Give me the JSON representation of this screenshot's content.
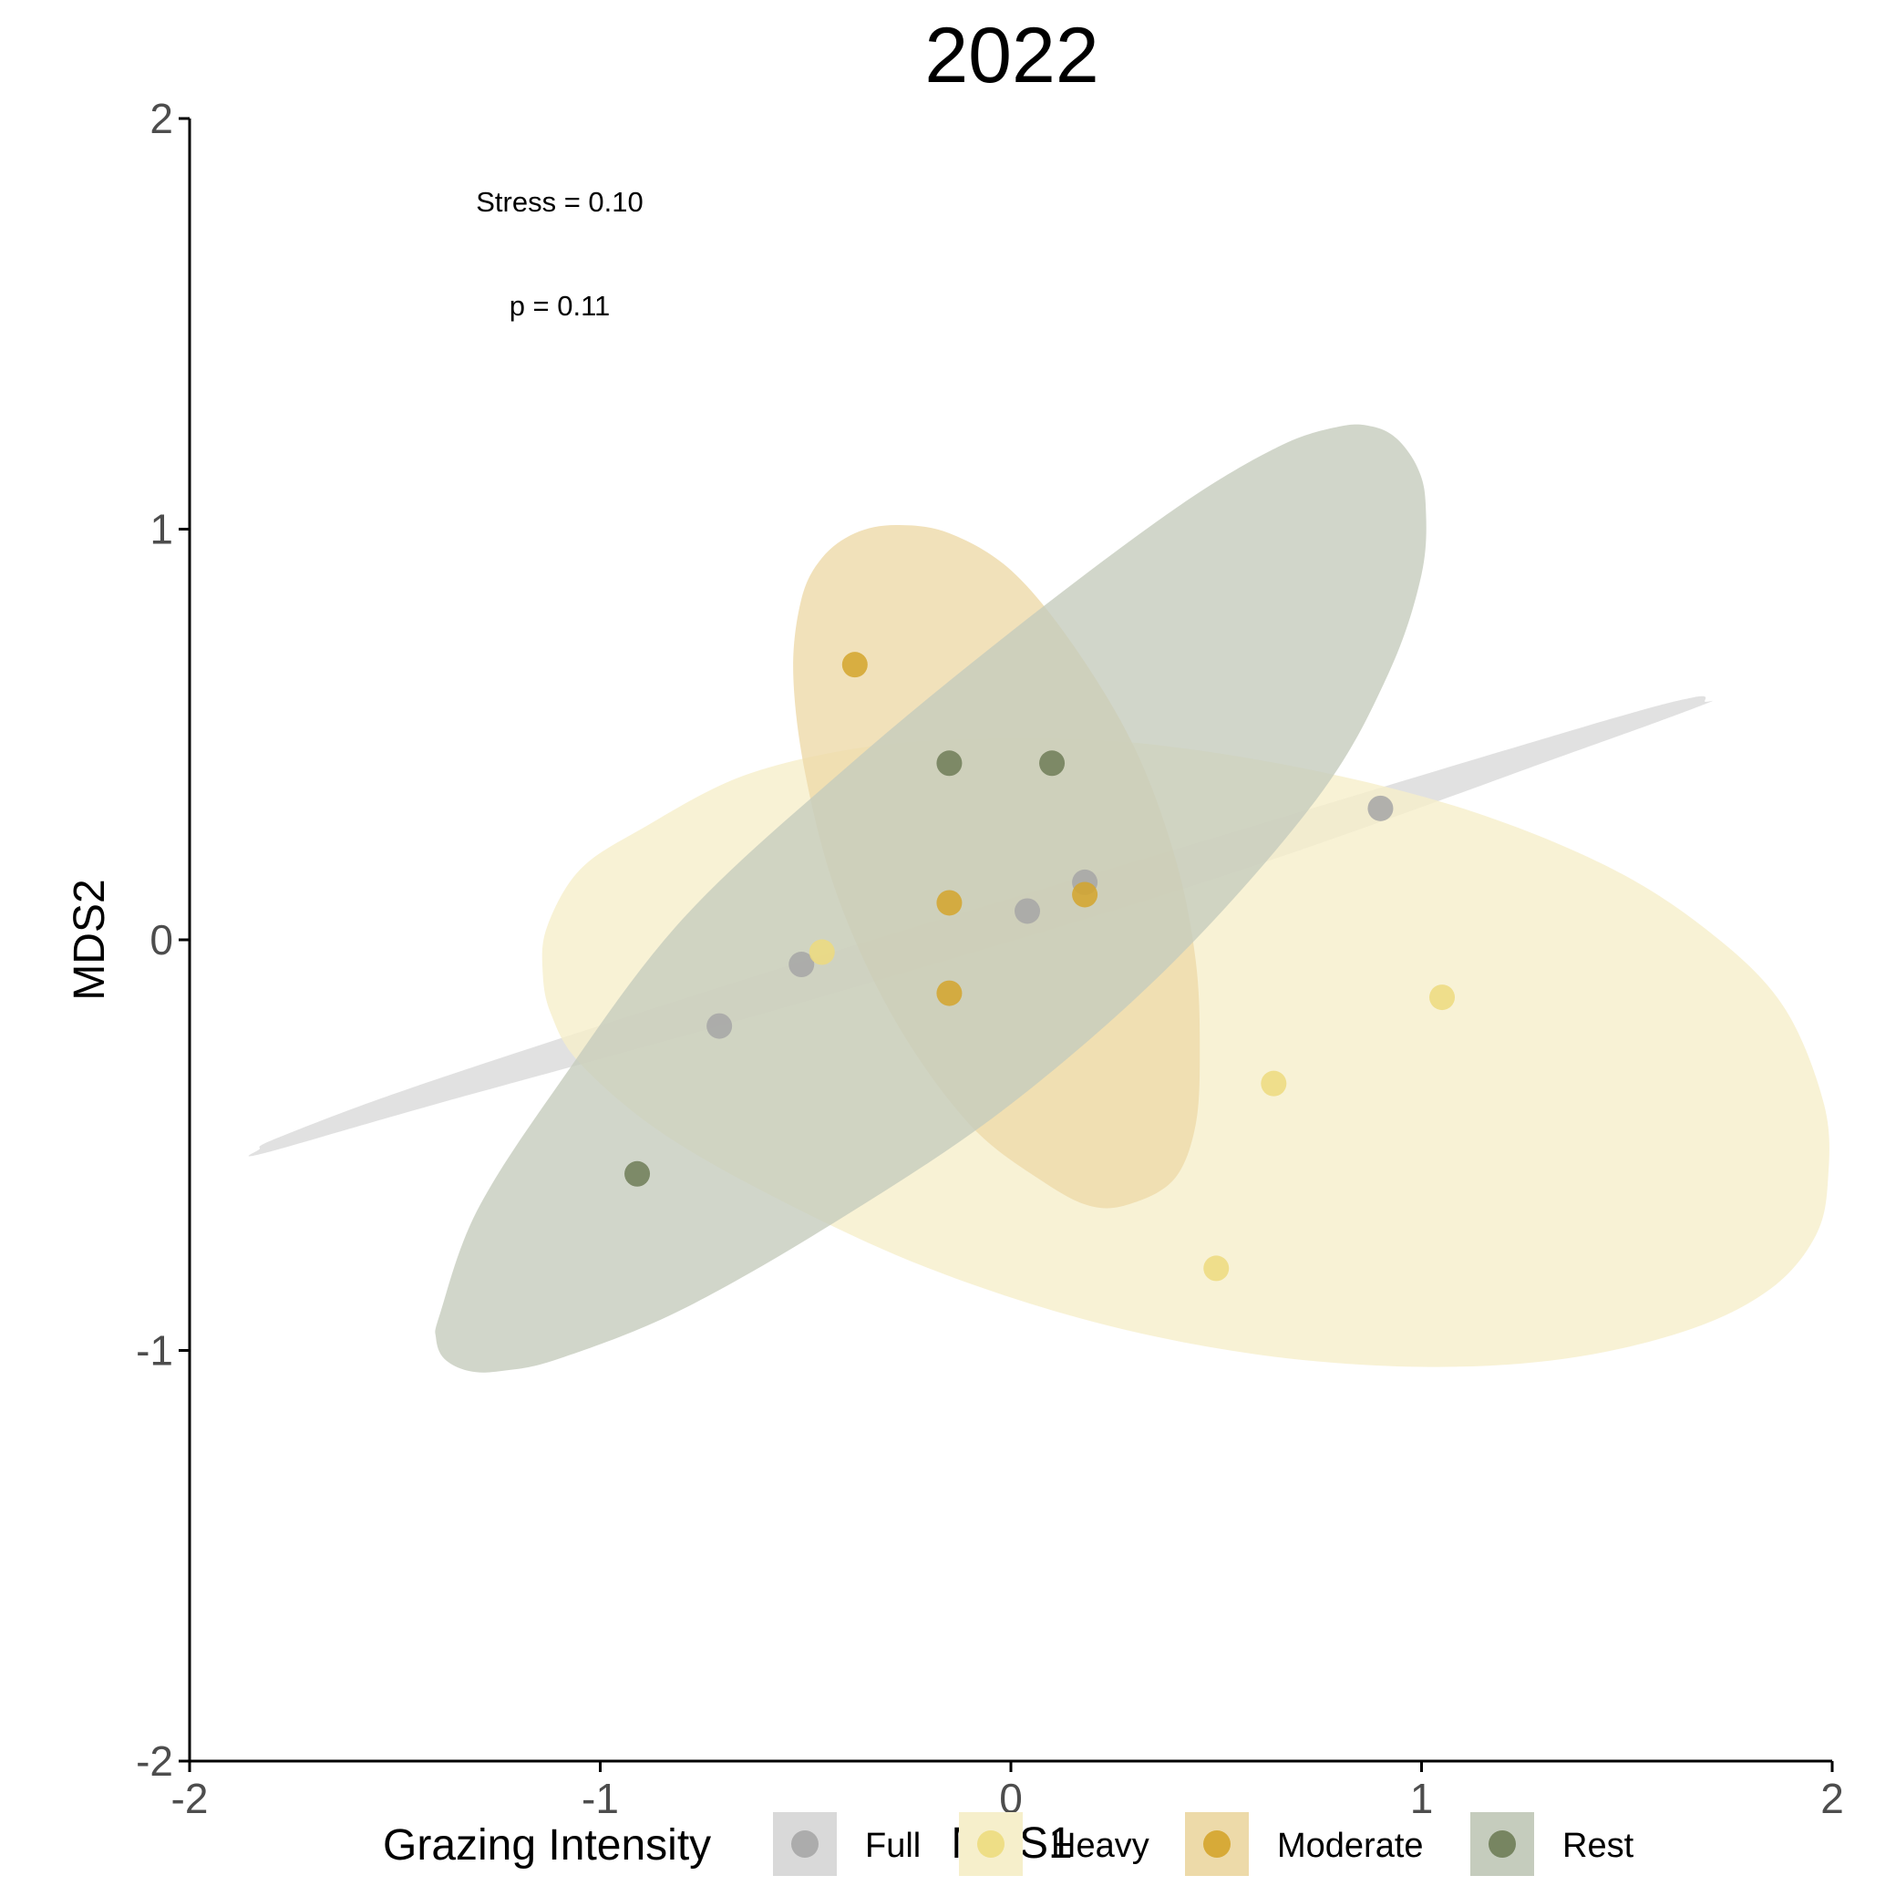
{
  "chart_data": {
    "type": "scatter",
    "title": "2022",
    "xlabel": "MDS1",
    "ylabel": "MDS2",
    "xlim": [
      -2,
      2
    ],
    "ylim": [
      -2,
      2
    ],
    "xticks": [
      "-2",
      "-1",
      "0",
      "1",
      "2"
    ],
    "yticks": [
      "-2",
      "-1",
      "0",
      "1",
      "2"
    ],
    "grid": false,
    "annotations": [
      "Stress = 0.10",
      "p = 0.11"
    ],
    "legend": {
      "title": "Grazing Intensity",
      "position": "bottom",
      "entries": [
        "Full",
        "Heavy",
        "Moderate",
        "Rest"
      ]
    },
    "series": [
      {
        "name": "Full",
        "color": "#a6a6a6",
        "fill": "#d9d9d9",
        "points": [
          [
            -0.71,
            -0.21
          ],
          [
            -0.51,
            -0.06
          ],
          [
            0.04,
            0.07
          ],
          [
            0.18,
            0.14
          ],
          [
            0.9,
            0.32
          ]
        ],
        "ellipse": [
          [
            -1.83,
            -0.51
          ],
          [
            -1.82,
            -0.52
          ],
          [
            -1.4,
            -0.4
          ],
          [
            -0.5,
            -0.15
          ],
          [
            0.5,
            0.15
          ],
          [
            1.35,
            0.45
          ],
          [
            1.68,
            0.57
          ],
          [
            1.69,
            0.58
          ],
          [
            1.66,
            0.59
          ],
          [
            1.4,
            0.52
          ],
          [
            0.5,
            0.25
          ],
          [
            -0.5,
            -0.05
          ],
          [
            -1.4,
            -0.34
          ],
          [
            -1.78,
            -0.48
          ]
        ]
      },
      {
        "name": "Heavy",
        "color": "#eddb7e",
        "fill": "#f6efcb",
        "points": [
          [
            -0.46,
            -0.03
          ],
          [
            0.5,
            -0.8
          ],
          [
            0.64,
            -0.35
          ],
          [
            1.05,
            -0.14
          ]
        ],
        "ellipse": [
          [
            -1.14,
            -0.08
          ],
          [
            -1.13,
            0.03
          ],
          [
            -1.05,
            0.17
          ],
          [
            -0.9,
            0.27
          ],
          [
            -0.65,
            0.4
          ],
          [
            -0.35,
            0.47
          ],
          [
            -0.05,
            0.49
          ],
          [
            0.3,
            0.48
          ],
          [
            0.7,
            0.42
          ],
          [
            1.1,
            0.32
          ],
          [
            1.45,
            0.18
          ],
          [
            1.7,
            0.02
          ],
          [
            1.88,
            -0.16
          ],
          [
            1.98,
            -0.4
          ],
          [
            1.99,
            -0.58
          ],
          [
            1.96,
            -0.72
          ],
          [
            1.85,
            -0.85
          ],
          [
            1.65,
            -0.95
          ],
          [
            1.35,
            -1.02
          ],
          [
            1.0,
            -1.04
          ],
          [
            0.6,
            -1.01
          ],
          [
            0.2,
            -0.93
          ],
          [
            -0.2,
            -0.8
          ],
          [
            -0.55,
            -0.64
          ],
          [
            -0.85,
            -0.47
          ],
          [
            -1.05,
            -0.3
          ],
          [
            -1.12,
            -0.18
          ]
        ]
      },
      {
        "name": "Moderate",
        "color": "#d4a42b",
        "fill": "#eddaa9",
        "points": [
          [
            -0.38,
            0.67
          ],
          [
            -0.15,
            0.09
          ],
          [
            -0.15,
            -0.13
          ],
          [
            0.18,
            0.11
          ]
        ],
        "ellipse": [
          [
            -0.51,
            0.83
          ],
          [
            -0.46,
            0.93
          ],
          [
            -0.38,
            0.99
          ],
          [
            -0.28,
            1.01
          ],
          [
            -0.15,
            0.99
          ],
          [
            0.0,
            0.9
          ],
          [
            0.15,
            0.72
          ],
          [
            0.3,
            0.47
          ],
          [
            0.4,
            0.2
          ],
          [
            0.45,
            -0.05
          ],
          [
            0.46,
            -0.27
          ],
          [
            0.45,
            -0.45
          ],
          [
            0.4,
            -0.58
          ],
          [
            0.3,
            -0.64
          ],
          [
            0.2,
            -0.65
          ],
          [
            0.08,
            -0.59
          ],
          [
            -0.1,
            -0.45
          ],
          [
            -0.28,
            -0.2
          ],
          [
            -0.42,
            0.1
          ],
          [
            -0.5,
            0.4
          ],
          [
            -0.53,
            0.65
          ]
        ]
      },
      {
        "name": "Rest",
        "color": "#6e7d57",
        "fill": "#c5ccbd",
        "points": [
          [
            -0.91,
            -0.57
          ],
          [
            -0.15,
            0.43
          ],
          [
            0.1,
            0.43
          ]
        ],
        "ellipse": [
          [
            -1.39,
            -0.91
          ],
          [
            -1.4,
            -0.97
          ],
          [
            -1.38,
            -1.02
          ],
          [
            -1.32,
            -1.05
          ],
          [
            -1.24,
            -1.05
          ],
          [
            -1.1,
            -1.02
          ],
          [
            -0.8,
            -0.9
          ],
          [
            -0.4,
            -0.67
          ],
          [
            0.0,
            -0.4
          ],
          [
            0.4,
            -0.05
          ],
          [
            0.75,
            0.35
          ],
          [
            0.92,
            0.65
          ],
          [
            1.0,
            0.89
          ],
          [
            1.01,
            1.06
          ],
          [
            0.99,
            1.15
          ],
          [
            0.94,
            1.22
          ],
          [
            0.88,
            1.25
          ],
          [
            0.8,
            1.25
          ],
          [
            0.65,
            1.2
          ],
          [
            0.4,
            1.05
          ],
          [
            0.0,
            0.75
          ],
          [
            -0.4,
            0.42
          ],
          [
            -0.8,
            0.05
          ],
          [
            -1.1,
            -0.35
          ],
          [
            -1.3,
            -0.66
          ]
        ]
      }
    ]
  }
}
